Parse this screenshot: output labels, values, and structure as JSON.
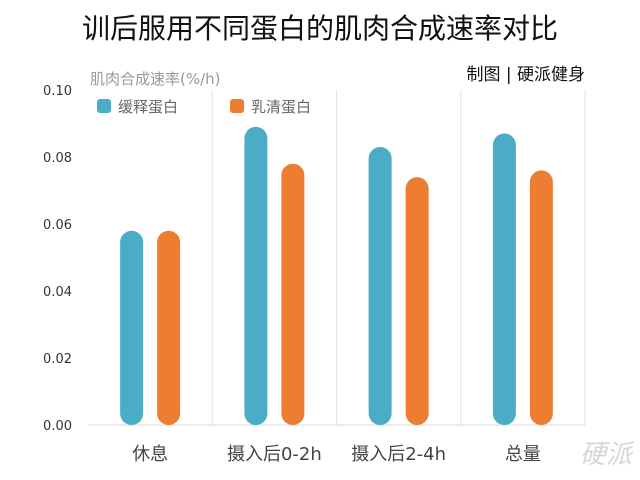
{
  "chart_data": {
    "type": "bar",
    "title": "训后服用不同蛋白的肌肉合成速率对比",
    "ylabel": "肌肉合成速率(%/h)",
    "xlabel": "",
    "credit": "制图 | 硬派健身",
    "watermark": "硬派",
    "categories": [
      "休息",
      "摄入后0-2h",
      "摄入后2-4h",
      "总量"
    ],
    "series": [
      {
        "name": "缓释蛋白",
        "color": "#4BACC6",
        "values": [
          0.058,
          0.089,
          0.083,
          0.087
        ]
      },
      {
        "name": "乳清蛋白",
        "color": "#ED7D31",
        "values": [
          0.058,
          0.078,
          0.074,
          0.076
        ]
      }
    ],
    "ylim": [
      0,
      0.1
    ],
    "yticks": [
      "0.00",
      "0.02",
      "0.04",
      "0.06",
      "0.08",
      "0.10"
    ],
    "grid": "vertical separators",
    "legend": "top-left"
  }
}
